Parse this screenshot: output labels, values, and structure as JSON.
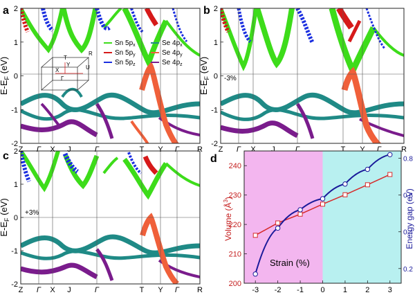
{
  "panel_letters": [
    "a",
    "b",
    "c",
    "d"
  ],
  "band_axis": {
    "ylabel": "E-E",
    "ylabel_sub": "F",
    "ylabel_unit": " (eV)",
    "yticks": [
      "2",
      "1",
      "0",
      "-1",
      "-2"
    ],
    "kpath": [
      "Z",
      "Γ",
      "X",
      "J",
      "Γ",
      "T",
      "Y",
      "Γ",
      "R"
    ]
  },
  "strain_labels": {
    "b": "-3%",
    "c": "+3%"
  },
  "legend": {
    "left": [
      {
        "label": "Sn 5p",
        "sub": "x",
        "color": "#3ddc1a"
      },
      {
        "label": "Sn 5p",
        "sub": "y",
        "color": "#d61a1a"
      },
      {
        "label": "Sn 5p",
        "sub": "z",
        "color": "#1a2ee0"
      }
    ],
    "right": [
      {
        "label": "Se 4p",
        "sub": "x",
        "color": "#1f8a86"
      },
      {
        "label": "Se 4p",
        "sub": "y",
        "color": "#f0603a"
      },
      {
        "label": "Se 4p",
        "sub": "z",
        "color": "#7a1c8c"
      }
    ]
  },
  "bz_labels": [
    "T",
    "Y",
    "R",
    "X",
    "U",
    "Γ"
  ],
  "chart_data": {
    "type": "line",
    "panel": "d",
    "xlabel": "Strain (%)",
    "ylabel_left": "Volume (Å",
    "ylabel_left_sup": "3",
    "ylabel_left_tail": ")",
    "ylabel_right": "Energy gap (eV)",
    "x": [
      -3,
      -2,
      -1,
      0,
      1,
      2,
      3
    ],
    "xlim": [
      -3.5,
      3.5
    ],
    "ylim_left": [
      200,
      245
    ],
    "ylim_right": [
      0.12,
      0.84
    ],
    "xticks": [
      "-3",
      "-2",
      "-1",
      "0",
      "1",
      "2",
      "3"
    ],
    "yticks_left": [
      "200",
      "210",
      "220",
      "230",
      "240"
    ],
    "yticks_right": [
      "0.2",
      "0.4",
      "0.6",
      "0.8"
    ],
    "shaded_regions": [
      {
        "from": -3.5,
        "to": 0,
        "color": "#f3b6ef"
      },
      {
        "from": 0,
        "to": 3.5,
        "color": "#b8f0f0"
      }
    ],
    "series": [
      {
        "axis": "left",
        "color": "#d62a2a",
        "marker": "square",
        "values": [
          216.3,
          220.5,
          223.5,
          226.9,
          230.1,
          233.5,
          237.0
        ]
      },
      {
        "axis": "right",
        "color": "#1a1a9a",
        "marker": "circle",
        "values": [
          0.17,
          0.42,
          0.52,
          0.58,
          0.66,
          0.74,
          0.82
        ]
      }
    ],
    "grid": false
  }
}
